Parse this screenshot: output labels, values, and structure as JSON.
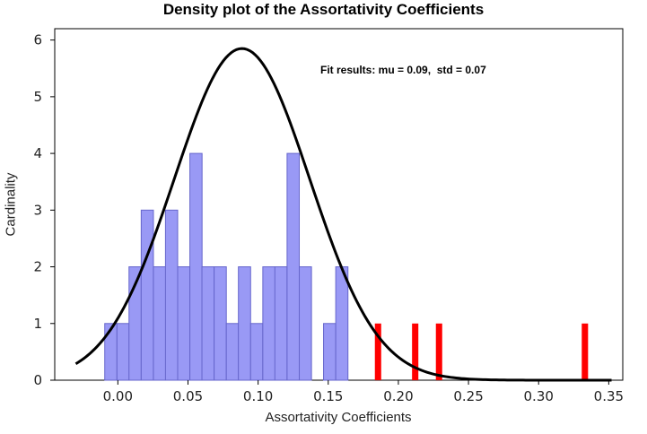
{
  "chart_data": {
    "type": "bar",
    "title": "Density plot of the Assortativity Coefficients",
    "xlabel": "Assortativity Coefficients",
    "ylabel": "Cardinality",
    "annotation": "Fit results: mu = 0.09,  std = 0.07",
    "xlim": [
      -0.045,
      0.36
    ],
    "ylim": [
      0,
      6.2
    ],
    "xticks": [
      "0.00",
      "0.05",
      "0.10",
      "0.15",
      "0.20",
      "0.25",
      "0.30",
      "0.35"
    ],
    "yticks": [
      "0",
      "1",
      "2",
      "3",
      "4",
      "5",
      "6"
    ],
    "bin_width": 0.0087,
    "colors": {
      "blue_bars": "#9999f5",
      "blue_edge": "#6666cc",
      "red_bars": "#ff0000",
      "fit_curve": "#000000"
    },
    "series": [
      {
        "color": "#9999f5",
        "x": [
          -0.005,
          0.0037,
          0.0123,
          0.021,
          0.0297,
          0.0383,
          0.047,
          0.0557,
          0.0643,
          0.073,
          0.0817,
          0.0903,
          0.099,
          0.1077,
          0.1163,
          0.125,
          0.1337,
          0.1423,
          0.151,
          0.1597
        ],
        "values": [
          1,
          1,
          2,
          3,
          2,
          3,
          2,
          4,
          2,
          2,
          1,
          2,
          1,
          2,
          2,
          4,
          2,
          0,
          1,
          2
        ]
      },
      {
        "color": "#ff0000",
        "x": [
          0.1855,
          0.212,
          0.229,
          0.333
        ],
        "values": [
          1,
          1,
          1,
          1
        ]
      }
    ],
    "fit": {
      "distribution": "normal",
      "mu": 0.0885,
      "peak": 5.85,
      "x_start": -0.03,
      "x_end": 0.352
    }
  }
}
